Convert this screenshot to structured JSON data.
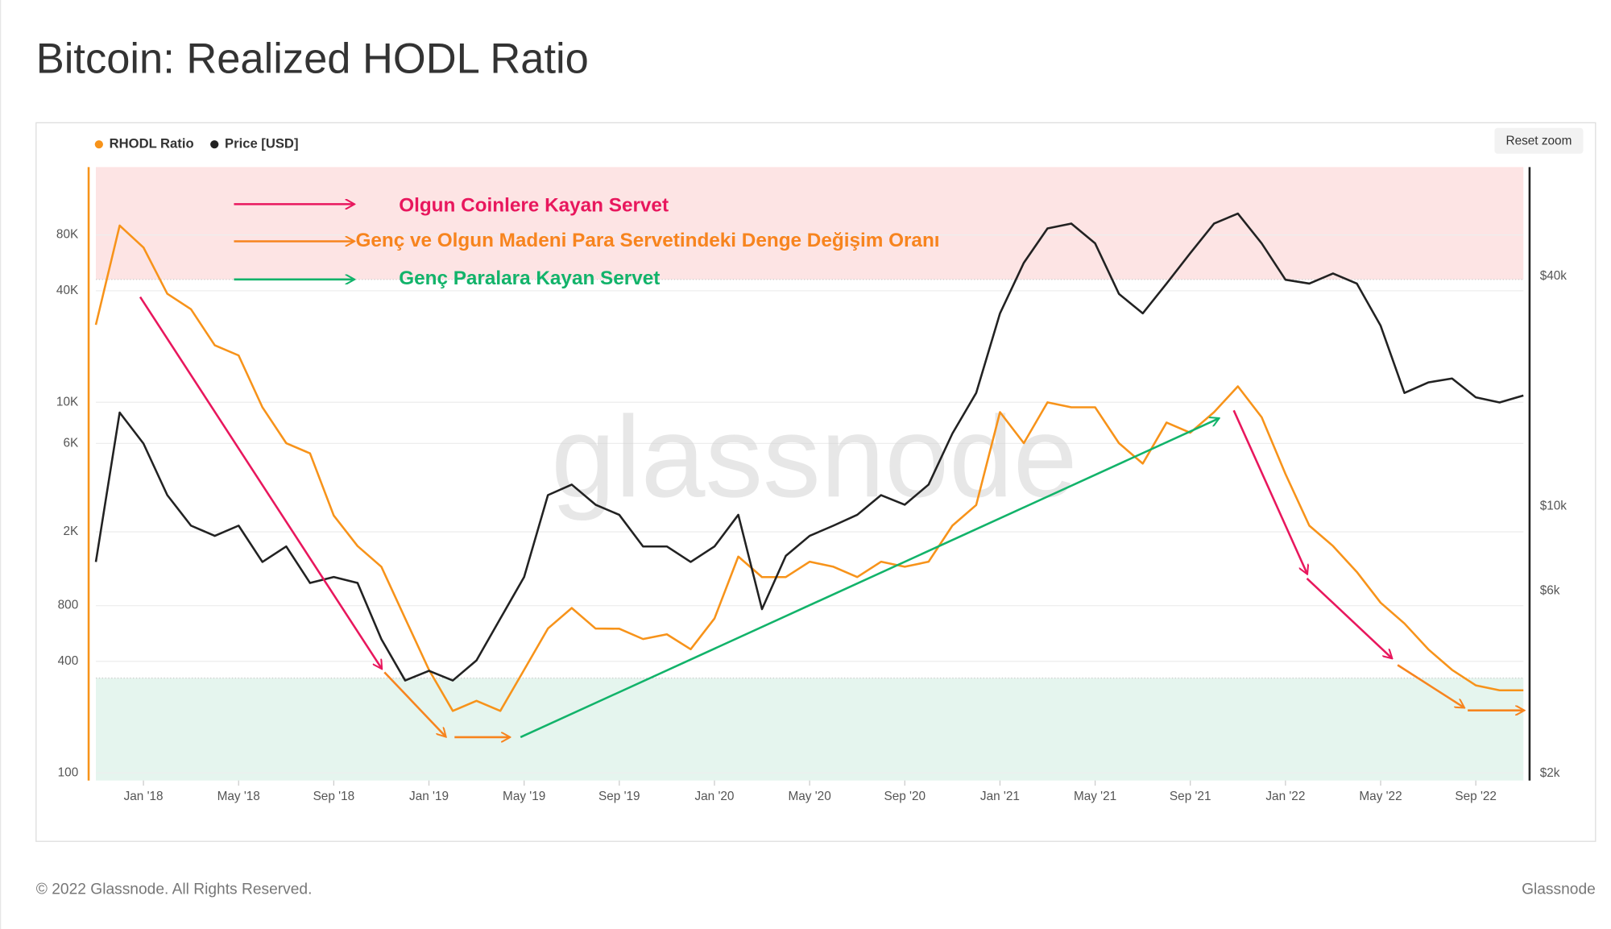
{
  "chart_data": {
    "type": "line",
    "title": "Bitcoin: Realized HODL Ratio",
    "watermark": "glassnode",
    "reset_button": "Reset zoom",
    "log_scale": true,
    "grid": true,
    "x": [
      "2017-11",
      "2017-12",
      "2018-01",
      "2018-02",
      "2018-03",
      "2018-04",
      "2018-05",
      "2018-06",
      "2018-07",
      "2018-08",
      "2018-09",
      "2018-10",
      "2018-11",
      "2018-12",
      "2019-01",
      "2019-02",
      "2019-03",
      "2019-04",
      "2019-05",
      "2019-06",
      "2019-07",
      "2019-08",
      "2019-09",
      "2019-10",
      "2019-11",
      "2019-12",
      "2020-01",
      "2020-02",
      "2020-03",
      "2020-04",
      "2020-05",
      "2020-06",
      "2020-07",
      "2020-08",
      "2020-09",
      "2020-10",
      "2020-11",
      "2020-12",
      "2021-01",
      "2021-02",
      "2021-03",
      "2021-04",
      "2021-05",
      "2021-06",
      "2021-07",
      "2021-08",
      "2021-09",
      "2021-10",
      "2021-11",
      "2021-12",
      "2022-01",
      "2022-02",
      "2022-03",
      "2022-04",
      "2022-05",
      "2022-06",
      "2022-07",
      "2022-08",
      "2022-09",
      "2022-10",
      "2022-11"
    ],
    "xlim": [
      "2017-11",
      "2022-11"
    ],
    "xticks": [
      {
        "value": "2018-01",
        "label": "Jan '18"
      },
      {
        "value": "2018-05",
        "label": "May '18"
      },
      {
        "value": "2018-09",
        "label": "Sep '18"
      },
      {
        "value": "2019-01",
        "label": "Jan '19"
      },
      {
        "value": "2019-05",
        "label": "May '19"
      },
      {
        "value": "2019-09",
        "label": "Sep '19"
      },
      {
        "value": "2020-01",
        "label": "Jan '20"
      },
      {
        "value": "2020-05",
        "label": "May '20"
      },
      {
        "value": "2020-09",
        "label": "Sep '20"
      },
      {
        "value": "2021-01",
        "label": "Jan '21"
      },
      {
        "value": "2021-05",
        "label": "May '21"
      },
      {
        "value": "2021-09",
        "label": "Sep '21"
      },
      {
        "value": "2022-01",
        "label": "Jan '22"
      },
      {
        "value": "2022-05",
        "label": "May '22"
      },
      {
        "value": "2022-09",
        "label": "Sep '22"
      }
    ],
    "ylim": [
      91,
      186000
    ],
    "yticks": [
      100,
      400,
      800,
      {
        "value": 2000,
        "label": "2K"
      },
      {
        "value": 6000,
        "label": "6K"
      },
      {
        "value": 10000,
        "label": "10K"
      },
      {
        "value": 40000,
        "label": "40K"
      },
      {
        "value": 80000,
        "label": "80K"
      }
    ],
    "y2lim": [
      1915,
      77300
    ],
    "y2ticks": [
      {
        "value": 2000,
        "label": "$2k"
      },
      {
        "value": 6000,
        "label": "$6k"
      },
      {
        "value": 10000,
        "label": "$10k"
      },
      {
        "value": 40000,
        "label": "$40k"
      }
    ],
    "bands": [
      {
        "above": 46000,
        "color": "#fde4e4"
      },
      {
        "below": 325,
        "color": "#e5f5ee"
      }
    ],
    "series": [
      {
        "name": "RHODL Ratio",
        "color": "#f7931a",
        "values": [
          26200,
          90000,
          68500,
          38500,
          31800,
          20300,
          17900,
          9400,
          6020,
          5300,
          2450,
          1675,
          1295,
          682,
          360,
          216,
          245,
          216,
          360,
          601,
          776,
          601,
          600,
          528,
          560,
          465,
          682,
          1470,
          1140,
          1140,
          1380,
          1295,
          1140,
          1380,
          1295,
          1380,
          2160,
          2790,
          8850,
          6020,
          10000,
          9400,
          9400,
          6020,
          4670,
          7780,
          6850,
          8850,
          12200,
          8300,
          4100,
          2160,
          1675,
          1215,
          828,
          640,
          465,
          360,
          297,
          279,
          279
        ]
      },
      {
        "name": "Price [USD]",
        "color": "#222222",
        "axis": "y2",
        "values": [
          7150,
          17600,
          14600,
          10700,
          8900,
          8370,
          8900,
          7150,
          7850,
          6300,
          6530,
          6300,
          4490,
          3500,
          3710,
          3500,
          3950,
          5080,
          6530,
          10700,
          11400,
          10100,
          9500,
          7850,
          7850,
          7150,
          7850,
          9500,
          5380,
          7420,
          8370,
          8900,
          9500,
          10700,
          10100,
          11400,
          15500,
          19800,
          32000,
          43400,
          53400,
          55000,
          48800,
          36000,
          32000,
          38300,
          46000,
          55000,
          58400,
          48800,
          39200,
          38300,
          40700,
          38300,
          29700,
          19800,
          21100,
          21600,
          19300,
          18700,
          19500
        ]
      }
    ],
    "annotations": [
      {
        "text": "Olgun Coinlere Kayan Servet",
        "color": "#e8175d"
      },
      {
        "text": "Genç ve Olgun Madeni Para Servetindeki Denge Değişim Oranı",
        "color": "#f7841e"
      },
      {
        "text": "Genç Paralara Kayan Servet",
        "color": "#12b36a"
      }
    ]
  },
  "footer": {
    "copyright": "© 2022 Glassnode. All Rights Reserved.",
    "brand": "Glassnode"
  }
}
